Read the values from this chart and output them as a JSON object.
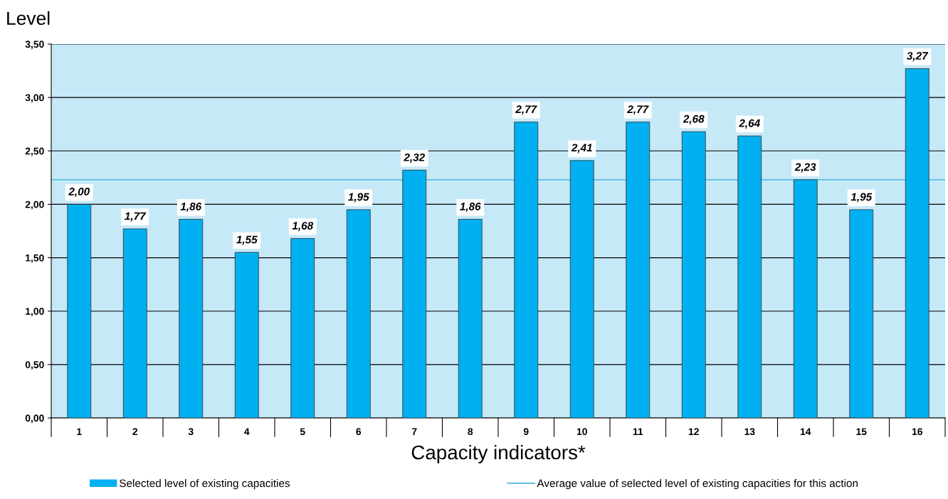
{
  "chart_data": {
    "type": "bar",
    "xlabel": "Capacity indicators*",
    "ylabel": "Level",
    "categories": [
      "1",
      "2",
      "3",
      "4",
      "5",
      "6",
      "7",
      "8",
      "9",
      "10",
      "11",
      "12",
      "13",
      "14",
      "15",
      "16"
    ],
    "series": [
      {
        "name": "Selected level of existing capacities",
        "color": "#00b0f0",
        "values": [
          2.0,
          1.77,
          1.86,
          1.55,
          1.68,
          1.95,
          2.32,
          1.86,
          2.77,
          2.41,
          2.77,
          2.68,
          2.64,
          2.23,
          1.95,
          3.27
        ],
        "value_labels": [
          "2,00",
          "1,77",
          "1,86",
          "1,55",
          "1,68",
          "1,95",
          "2,32",
          "1,86",
          "2,77",
          "2,41",
          "2,77",
          "2,68",
          "2,64",
          "2,23",
          "1,95",
          "3,27"
        ]
      }
    ],
    "ref_lines": [
      {
        "axis": "y",
        "value": 2.23,
        "label": "Average value of selected level of existing capacities for this action",
        "color": "#33aadd",
        "line_style": "solid"
      }
    ],
    "ylim": [
      0,
      3.5
    ],
    "yticks": [
      {
        "value": 0,
        "label": "0,00"
      },
      {
        "value": 0.5,
        "label": "0,50"
      },
      {
        "value": 1,
        "label": "1,00"
      },
      {
        "value": 1.5,
        "label": "1,50"
      },
      {
        "value": 2,
        "label": "2,00"
      },
      {
        "value": 2.5,
        "label": "2,50"
      },
      {
        "value": 3,
        "label": "3,00"
      },
      {
        "value": 3.5,
        "label": "3,50"
      }
    ],
    "grid": "y",
    "legend": "bottom"
  }
}
